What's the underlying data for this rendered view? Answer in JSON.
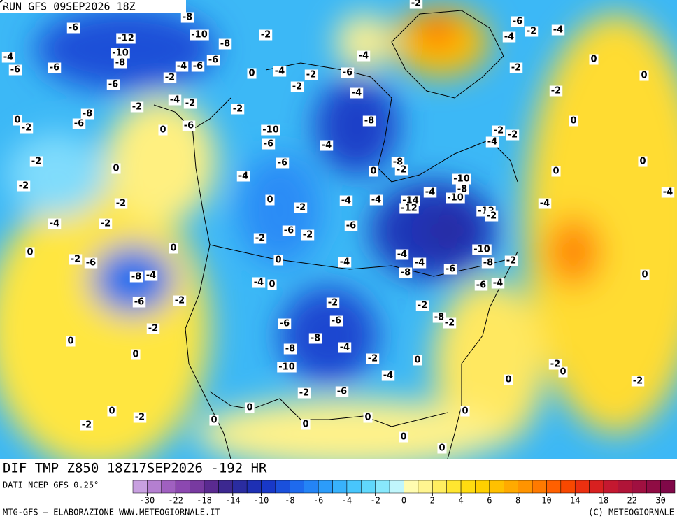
{
  "header": {
    "run": "RUN GFS 09SEP2026 18Z"
  },
  "map": {
    "title": "DIF TMP Z850 18Z17SEP2026 -192 HR",
    "contour_labels": [
      -6,
      -12,
      -8,
      -10,
      -8,
      -2,
      -10,
      -8,
      -4,
      -6,
      -6,
      -4,
      -6,
      -6,
      -2,
      -6,
      -4,
      -2,
      -8,
      -6,
      -2,
      -2,
      -6,
      0,
      0,
      -2,
      -2,
      -2,
      0,
      -2,
      -2,
      -4,
      0,
      0,
      -6,
      -2,
      -8,
      -4,
      -6,
      -2,
      -2,
      0,
      0,
      -2,
      0,
      -2,
      0,
      0,
      0,
      0,
      0,
      0,
      0,
      0,
      0,
      -4,
      -2,
      -6,
      -4,
      -2,
      -4,
      -8,
      -10,
      -6,
      -4,
      -6,
      -4,
      0,
      -2,
      -4,
      -4,
      -6,
      -2,
      -6,
      -2,
      0,
      -4,
      -4,
      0,
      -2,
      -6,
      -6,
      -8,
      -8,
      -4,
      -10,
      -2,
      -4,
      -2,
      -6,
      0,
      0,
      -8,
      -2,
      -4,
      -14,
      -12,
      -10,
      -8,
      -10,
      -12,
      -2,
      -4,
      -4,
      -8,
      -6,
      -10,
      -8,
      -6,
      -4,
      -2,
      -8,
      -2,
      0,
      -4,
      -2,
      0,
      0,
      0,
      0,
      0,
      -2,
      -2,
      -2,
      -2,
      -4,
      -6,
      -2,
      -4,
      -4,
      -2,
      -4,
      -2,
      -2,
      0,
      0
    ]
  },
  "colorbar": {
    "source": "DATI NCEP GFS 0.25°",
    "colors": [
      "#c8a0e0",
      "#b47fd0",
      "#a060c0",
      "#8c48b0",
      "#783aa0",
      "#5a2a90",
      "#3c2890",
      "#2a2ca0",
      "#1e30b4",
      "#1838c8",
      "#1a50dc",
      "#1e6aee",
      "#2484f6",
      "#2c9cfa",
      "#38b2fc",
      "#48c6fc",
      "#60d8fc",
      "#88e8fc",
      "#c0f6fc",
      "#fffcb0",
      "#fff590",
      "#ffee60",
      "#ffe630",
      "#ffdc10",
      "#ffd000",
      "#ffc000",
      "#ffaa00",
      "#ff9400",
      "#ff7a00",
      "#ff6000",
      "#f84800",
      "#ec3010",
      "#d82020",
      "#c41830",
      "#b01438",
      "#a01040",
      "#900c44",
      "#800848"
    ],
    "ticks": [
      -30,
      -22,
      -18,
      -14,
      -10,
      -8,
      -6,
      -4,
      -2,
      0,
      2,
      4,
      6,
      8,
      10,
      14,
      18,
      22,
      30
    ]
  },
  "footer": {
    "left": "MTG-GFS — ELABORAZIONE WWW.METEOGIORNALE.IT",
    "right": "(C) METEOGIORNALE"
  }
}
